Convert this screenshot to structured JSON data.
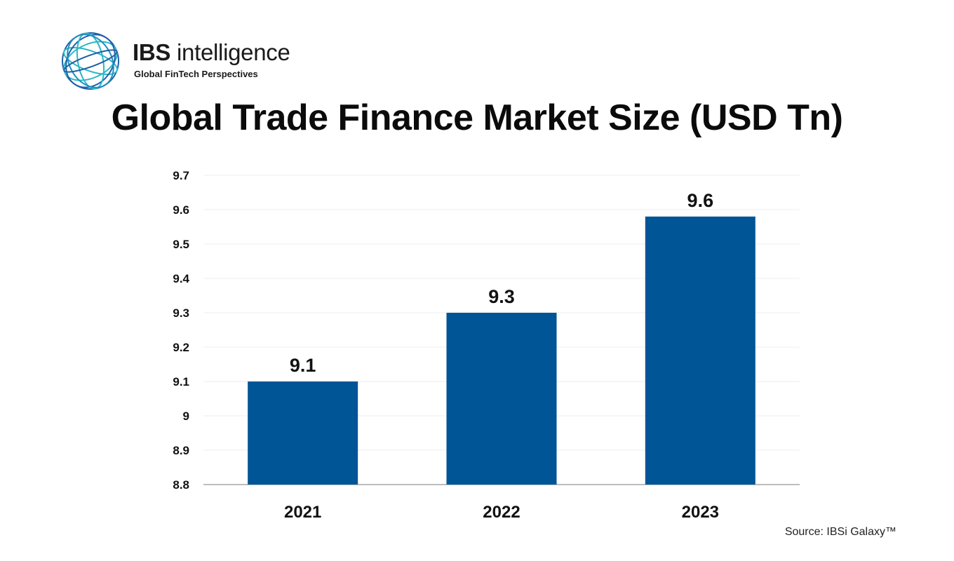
{
  "brand": {
    "name_bold": "IBS",
    "name_light": "intelligence",
    "tagline": "Global FinTech Perspectives",
    "colors": {
      "globe_dark": "#1e5fa8",
      "globe_light": "#2ab8c6"
    },
    "icon": "globe-logo-icon"
  },
  "chart_data": {
    "type": "bar",
    "title": "Global Trade Finance Market Size (USD Tn)",
    "categories": [
      "2021",
      "2022",
      "2023"
    ],
    "values": [
      9.1,
      9.3,
      9.58
    ],
    "data_labels": [
      "9.1",
      "9.3",
      "9.6"
    ],
    "ylim": [
      8.8,
      9.7
    ],
    "yticks": [
      8.8,
      8.9,
      9.0,
      9.1,
      9.2,
      9.3,
      9.4,
      9.5,
      9.6,
      9.7
    ],
    "ytick_labels": [
      "8.8",
      "8.9",
      "9",
      "9.1",
      "9.2",
      "9.3",
      "9.4",
      "9.5",
      "9.6",
      "9.7"
    ],
    "xlabel": "",
    "ylabel": "",
    "grid": true,
    "legend": "none",
    "bar_color": "#005596"
  },
  "source": "Source: IBSi Galaxy™"
}
